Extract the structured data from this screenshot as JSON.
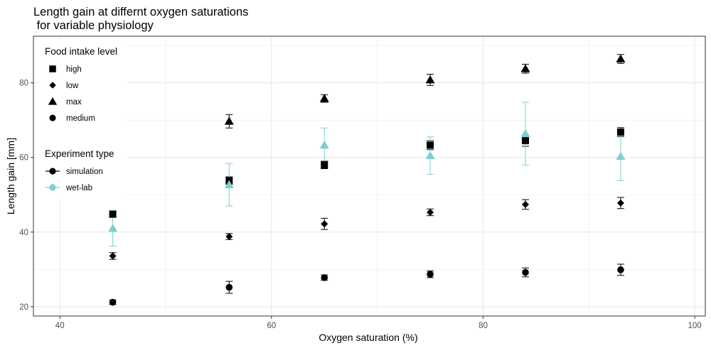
{
  "chart_data": {
    "type": "scatter",
    "title_lines": [
      "Length gain at differnt oxygen saturations",
      " for variable physiology"
    ],
    "xlabel": "Oxygen saturation (%)",
    "ylabel": "Length gain [mm]",
    "xlim": [
      37.5,
      101
    ],
    "ylim": [
      17.5,
      92.5
    ],
    "x_ticks": [
      40,
      60,
      80,
      100
    ],
    "y_ticks": [
      20,
      40,
      60,
      80
    ],
    "x_tick_labels": [
      "40",
      "60",
      "80",
      "100"
    ],
    "y_tick_labels": [
      "20",
      "40",
      "60",
      "80"
    ],
    "grid": true,
    "legend_position": "top-left inside",
    "shape_legend": {
      "title": "Food intake level",
      "items": [
        {
          "label": "high",
          "shape": "square"
        },
        {
          "label": "low",
          "shape": "diamond"
        },
        {
          "label": "max",
          "shape": "triangle"
        },
        {
          "label": "medium",
          "shape": "circle"
        }
      ]
    },
    "color_legend": {
      "title": "Experiment type",
      "items": [
        {
          "label": "simulation",
          "color": "#000000"
        },
        {
          "label": "wet-lab",
          "color": "#7ecfd0"
        }
      ]
    },
    "series": [
      {
        "name": "simulation",
        "level": "high",
        "shape": "square",
        "color": "#000000",
        "x": [
          45,
          56,
          65,
          75,
          84,
          93
        ],
        "y": [
          44.8,
          53.8,
          58,
          63.3,
          64.5,
          66.8
        ],
        "err": [
          0.7,
          1.0,
          1.0,
          1.2,
          1.5,
          1.2
        ]
      },
      {
        "name": "simulation",
        "level": "low",
        "shape": "diamond",
        "color": "#000000",
        "x": [
          45,
          56,
          65,
          75,
          84,
          93
        ],
        "y": [
          33.6,
          38.8,
          42.2,
          45.3,
          47.4,
          47.8
        ],
        "err": [
          0.9,
          0.8,
          1.5,
          0.9,
          1.3,
          1.5
        ]
      },
      {
        "name": "simulation",
        "level": "max",
        "shape": "triangle",
        "color": "#000000",
        "x": [
          56,
          65,
          75,
          84,
          93
        ],
        "y": [
          69.7,
          75.8,
          80.8,
          83.8,
          86.4
        ],
        "err": [
          1.8,
          1.0,
          1.5,
          1.2,
          1.2
        ]
      },
      {
        "name": "simulation",
        "level": "medium",
        "shape": "circle",
        "color": "#000000",
        "x": [
          45,
          56,
          65,
          75,
          84,
          93
        ],
        "y": [
          21.2,
          25.2,
          27.8,
          28.7,
          29.2,
          29.9
        ],
        "err": [
          0.6,
          1.6,
          0.7,
          0.9,
          1.2,
          1.5
        ]
      },
      {
        "name": "wet-lab",
        "level": "max",
        "shape": "triangle",
        "color": "#7ecfd0",
        "x": [
          45,
          56,
          65,
          75,
          84,
          93
        ],
        "y": [
          41.0,
          52.7,
          63.3,
          60.5,
          66.4,
          60.3
        ],
        "err": [
          4.8,
          5.7,
          4.6,
          5.0,
          8.4,
          6.5
        ]
      }
    ]
  }
}
